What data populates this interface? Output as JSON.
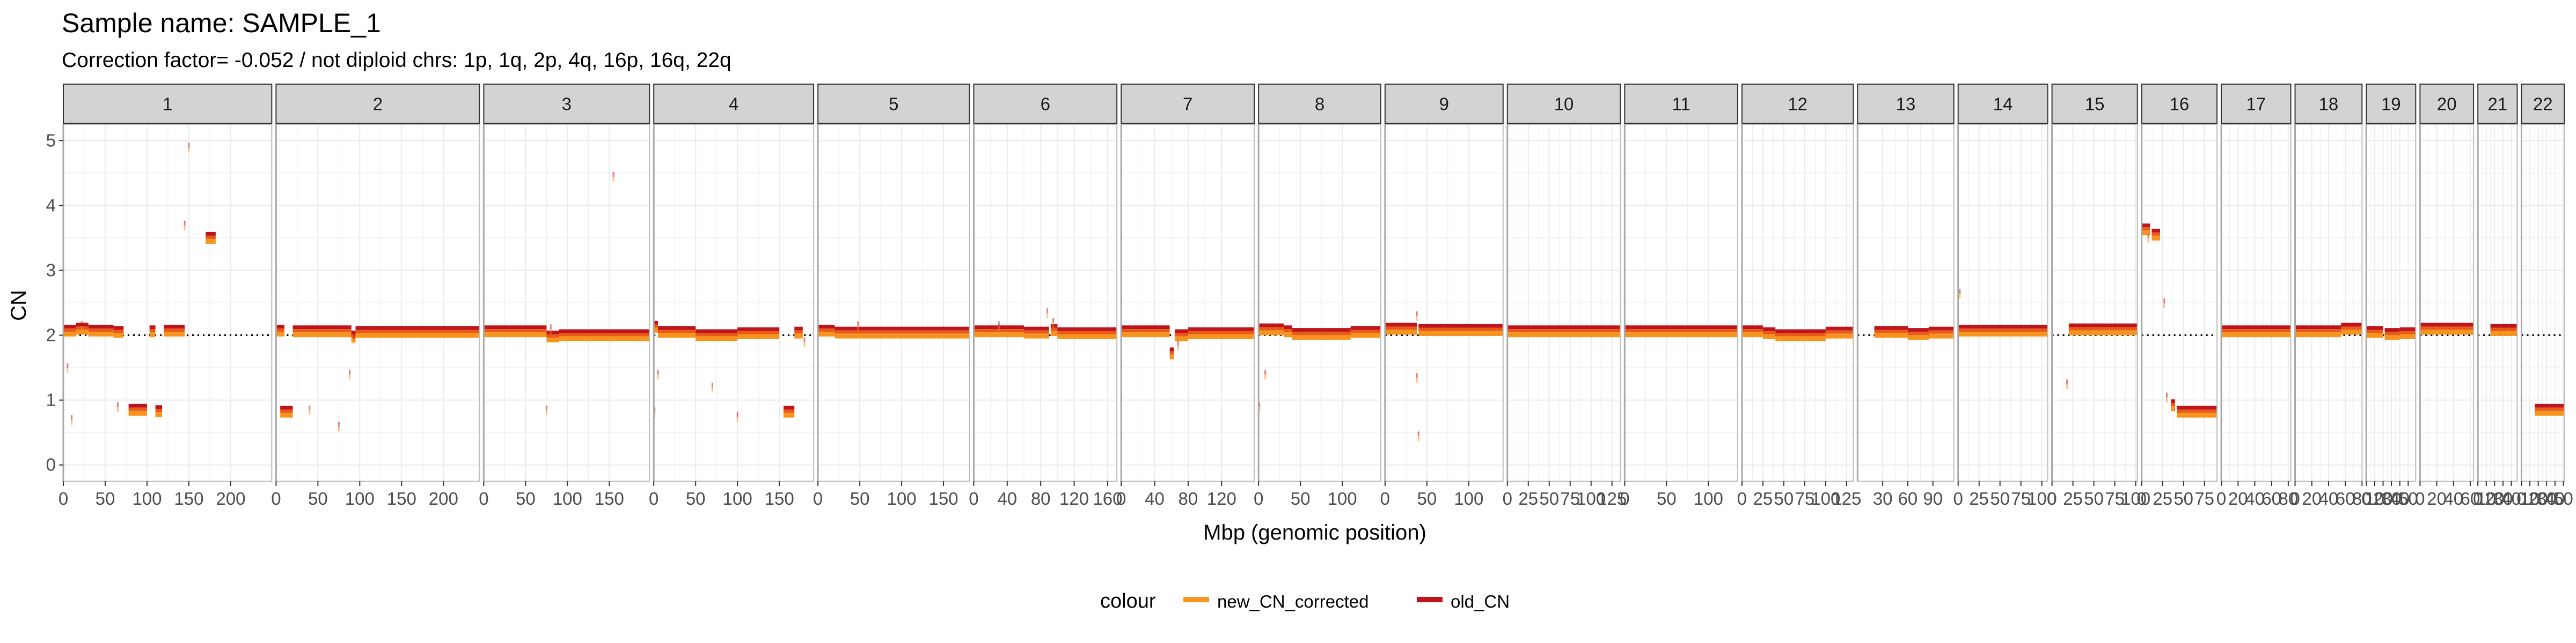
{
  "chart_data": {
    "type": "scatter",
    "title": "Sample name: SAMPLE_1",
    "subtitle": "Correction factor= -0.052 / not diploid chrs: 1p, 1q, 2p, 4q, 16p, 16q, 22q",
    "xlabel": "Mbp (genomic position)",
    "ylabel": "CN",
    "ylim": [
      -0.25,
      5.25
    ],
    "yticks": [
      "0",
      "1",
      "2",
      "3",
      "4",
      "5"
    ],
    "reference_line": 2,
    "legend": {
      "title": "colour",
      "placement": "bottom",
      "entries": [
        {
          "name": "new_CN_corrected",
          "color": "#F7941D"
        },
        {
          "name": "old_CN",
          "color": "#C0141C"
        }
      ]
    },
    "colors": {
      "new": "#F7941D",
      "old": "#C0141C",
      "mid": "#E8591A",
      "strip": "#d3d3d3",
      "grid": "#ebebeb"
    },
    "chromosomes": [
      {
        "name": "1",
        "length": 249,
        "ticks": [
          "0",
          "50",
          "100",
          "150",
          "200"
        ],
        "tick_values": [
          0,
          50,
          100,
          150,
          200
        ],
        "segments": [
          [
            1,
            15,
            2.07
          ],
          [
            15,
            30,
            2.1
          ],
          [
            30,
            60,
            2.07
          ],
          [
            60,
            72,
            2.05
          ],
          [
            78,
            100,
            0.85
          ],
          [
            103,
            110,
            2.06
          ],
          [
            110,
            118,
            0.83
          ],
          [
            120,
            145,
            2.07
          ],
          [
            170,
            182,
            3.5
          ]
        ],
        "points": [
          [
            5,
            1.5
          ],
          [
            10,
            0.7
          ],
          [
            22,
            2.15
          ],
          [
            65,
            0.9
          ],
          [
            145,
            3.7
          ],
          [
            150,
            4.9
          ]
        ]
      },
      {
        "name": "2",
        "length": 243,
        "ticks": [
          "0",
          "50",
          "100",
          "150",
          "200"
        ],
        "tick_values": [
          0,
          50,
          100,
          150,
          200
        ],
        "segments": [
          [
            0,
            10,
            2.07
          ],
          [
            5,
            20,
            0.82
          ],
          [
            20,
            90,
            2.06
          ],
          [
            90,
            95,
            1.98
          ],
          [
            95,
            243,
            2.05
          ]
        ],
        "points": [
          [
            40,
            0.85
          ],
          [
            75,
            0.6
          ],
          [
            88,
            1.4
          ],
          [
            93,
            1.95
          ]
        ]
      },
      {
        "name": "3",
        "length": 198,
        "ticks": [
          "0",
          "50",
          "100",
          "150"
        ],
        "tick_values": [
          0,
          50,
          100,
          150
        ],
        "segments": [
          [
            0,
            75,
            2.06
          ],
          [
            75,
            90,
            1.98
          ],
          [
            90,
            198,
            2.0
          ]
        ],
        "points": [
          [
            75,
            0.85
          ],
          [
            155,
            4.45
          ],
          [
            80,
            2.1
          ]
        ]
      },
      {
        "name": "4",
        "length": 191,
        "ticks": [
          "0",
          "50",
          "100",
          "150"
        ],
        "tick_values": [
          0,
          50,
          100,
          150
        ],
        "segments": [
          [
            0,
            5,
            2.13
          ],
          [
            5,
            50,
            2.05
          ],
          [
            50,
            100,
            2.0
          ],
          [
            100,
            150,
            2.03
          ],
          [
            155,
            168,
            0.82
          ],
          [
            168,
            178,
            2.04
          ]
        ],
        "points": [
          [
            1,
            0.82
          ],
          [
            5,
            1.4
          ],
          [
            70,
            1.2
          ],
          [
            100,
            0.75
          ],
          [
            180,
            1.9
          ]
        ]
      },
      {
        "name": "5",
        "length": 181,
        "ticks": [
          "0",
          "50",
          "100",
          "150"
        ],
        "tick_values": [
          0,
          50,
          100,
          150
        ],
        "segments": [
          [
            0,
            20,
            2.07
          ],
          [
            20,
            181,
            2.04
          ]
        ],
        "points": [
          [
            48,
            2.15
          ]
        ]
      },
      {
        "name": "6",
        "length": 171,
        "ticks": [
          "0",
          "40",
          "80",
          "120",
          "160"
        ],
        "tick_values": [
          0,
          40,
          80,
          120,
          160
        ],
        "segments": [
          [
            0,
            60,
            2.06
          ],
          [
            60,
            90,
            2.04
          ],
          [
            92,
            100,
            2.08
          ],
          [
            100,
            171,
            2.03
          ]
        ],
        "points": [
          [
            30,
            2.15
          ],
          [
            88,
            2.35
          ],
          [
            95,
            2.2
          ]
        ]
      },
      {
        "name": "7",
        "length": 159,
        "ticks": [
          "0",
          "40",
          "80",
          "120"
        ],
        "tick_values": [
          0,
          40,
          80,
          120
        ],
        "segments": [
          [
            0,
            58,
            2.06
          ],
          [
            58,
            63,
            1.72
          ],
          [
            64,
            80,
            2.0
          ],
          [
            80,
            159,
            2.03
          ]
        ],
        "points": [
          [
            68,
            1.85
          ]
        ]
      },
      {
        "name": "8",
        "length": 146,
        "ticks": [
          "0",
          "50",
          "100"
        ],
        "tick_values": [
          0,
          50,
          100
        ],
        "segments": [
          [
            0,
            30,
            2.09
          ],
          [
            30,
            40,
            2.06
          ],
          [
            40,
            110,
            2.02
          ],
          [
            110,
            146,
            2.05
          ]
        ],
        "points": [
          [
            1,
            0.9
          ],
          [
            8,
            1.4
          ]
        ]
      },
      {
        "name": "9",
        "length": 141,
        "ticks": [
          "0",
          "50",
          "100"
        ],
        "tick_values": [
          0,
          50,
          100
        ],
        "segments": [
          [
            0,
            38,
            2.1
          ],
          [
            40,
            141,
            2.08
          ]
        ],
        "points": [
          [
            38,
            1.35
          ],
          [
            38,
            2.3
          ],
          [
            40,
            0.45
          ]
        ]
      },
      {
        "name": "10",
        "length": 135,
        "ticks": [
          "0",
          "25",
          "50",
          "75",
          "100",
          "125"
        ],
        "tick_values": [
          0,
          25,
          50,
          75,
          100,
          125
        ],
        "segments": [
          [
            0,
            135,
            2.06
          ]
        ],
        "points": []
      },
      {
        "name": "11",
        "length": 135,
        "ticks": [
          "0",
          "50",
          "100"
        ],
        "tick_values": [
          0,
          50,
          100
        ],
        "segments": [
          [
            0,
            135,
            2.06
          ]
        ],
        "points": []
      },
      {
        "name": "12",
        "length": 133,
        "ticks": [
          "0",
          "25",
          "50",
          "75",
          "100",
          "125"
        ],
        "tick_values": [
          0,
          25,
          50,
          75,
          100,
          125
        ],
        "segments": [
          [
            0,
            25,
            2.06
          ],
          [
            25,
            40,
            2.03
          ],
          [
            40,
            100,
            2.0
          ],
          [
            100,
            133,
            2.04
          ]
        ],
        "points": []
      },
      {
        "name": "13",
        "length": 115,
        "ticks": [
          "30",
          "60",
          "90"
        ],
        "tick_values": [
          30,
          60,
          90
        ],
        "segments": [
          [
            20,
            60,
            2.05
          ],
          [
            60,
            85,
            2.02
          ],
          [
            85,
            115,
            2.04
          ]
        ],
        "points": []
      },
      {
        "name": "14",
        "length": 107,
        "ticks": [
          "0",
          "25",
          "50",
          "75",
          "100"
        ],
        "tick_values": [
          0,
          25,
          50,
          75,
          100
        ],
        "segments": [
          [
            0,
            107,
            2.07
          ]
        ],
        "points": [
          [
            2,
            2.65
          ]
        ]
      },
      {
        "name": "15",
        "length": 102,
        "ticks": [
          "0",
          "25",
          "50",
          "75",
          "100"
        ],
        "tick_values": [
          0,
          25,
          50,
          75,
          100
        ],
        "segments": [
          [
            20,
            102,
            2.09
          ]
        ],
        "points": [
          [
            18,
            1.25
          ]
        ]
      },
      {
        "name": "16",
        "length": 90,
        "ticks": [
          "0",
          "25",
          "50",
          "75"
        ],
        "tick_values": [
          0,
          25,
          50,
          75
        ],
        "segments": [
          [
            0,
            10,
            3.63
          ],
          [
            12,
            22,
            3.55
          ],
          [
            35,
            40,
            0.92
          ],
          [
            42,
            90,
            0.82
          ]
        ],
        "points": [
          [
            8,
            3.5
          ],
          [
            27,
            2.5
          ],
          [
            30,
            1.05
          ]
        ]
      },
      {
        "name": "17",
        "length": 83,
        "ticks": [
          "0",
          "20",
          "40",
          "60",
          "80"
        ],
        "tick_values": [
          0,
          20,
          40,
          60,
          80
        ],
        "segments": [
          [
            0,
            83,
            2.06
          ]
        ],
        "points": []
      },
      {
        "name": "18",
        "length": 80,
        "ticks": [
          "0",
          "20",
          "40",
          "60",
          "80"
        ],
        "tick_values": [
          0,
          20,
          40,
          60,
          80
        ],
        "segments": [
          [
            0,
            55,
            2.06
          ],
          [
            55,
            80,
            2.1
          ]
        ],
        "points": []
      },
      {
        "name": "19",
        "length": 59,
        "ticks": [
          "0",
          "10",
          "20",
          "30",
          "40",
          "50"
        ],
        "tick_values": [
          0,
          10,
          20,
          30,
          40,
          50
        ],
        "segments": [
          [
            0,
            20,
            2.05
          ],
          [
            22,
            40,
            2.02
          ],
          [
            40,
            59,
            2.03
          ]
        ],
        "points": []
      },
      {
        "name": "20",
        "length": 64,
        "ticks": [
          "0",
          "20",
          "40",
          "60"
        ],
        "tick_values": [
          0,
          20,
          40,
          60
        ],
        "segments": [
          [
            0,
            64,
            2.1
          ]
        ],
        "points": []
      },
      {
        "name": "21",
        "length": 47,
        "ticks": [
          "0",
          "10",
          "20",
          "30",
          "40"
        ],
        "tick_values": [
          0,
          10,
          20,
          30,
          40
        ],
        "segments": [
          [
            15,
            47,
            2.08
          ]
        ],
        "points": []
      },
      {
        "name": "22",
        "length": 51,
        "ticks": [
          "0",
          "10",
          "20",
          "30",
          "40",
          "50"
        ],
        "tick_values": [
          0,
          10,
          20,
          30,
          40,
          50
        ],
        "segments": [
          [
            16,
            51,
            0.85
          ]
        ],
        "points": []
      }
    ]
  }
}
